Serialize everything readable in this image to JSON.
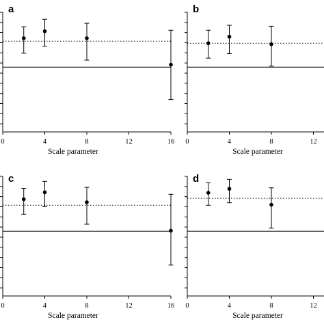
{
  "chart_data": [
    {
      "type": "scatter",
      "panel_label": "a",
      "xlabel": "Scale parameter",
      "xlim": [
        0,
        16
      ],
      "ylim": [
        -1.3,
        1.1
      ],
      "x_ticks": [
        "0",
        "4",
        "8",
        "12",
        "16"
      ],
      "dotted_line_y": 0.52,
      "solid_line_y": 0,
      "grid": false,
      "series": [
        {
          "points": [
            {
              "x": 2,
              "y": 0.58,
              "lower": 0.28,
              "upper": 0.81
            },
            {
              "x": 4,
              "y": 0.72,
              "lower": 0.42,
              "upper": 0.96
            },
            {
              "x": 8,
              "y": 0.58,
              "lower": 0.14,
              "upper": 0.88
            },
            {
              "x": 16,
              "y": 0.05,
              "lower": -0.65,
              "upper": 0.74
            }
          ]
        }
      ]
    },
    {
      "type": "scatter",
      "panel_label": "b",
      "xlabel": "Scale parameter",
      "xlim": [
        0,
        16
      ],
      "ylim": [
        -1.3,
        1.1
      ],
      "x_ticks": [
        "0",
        "4",
        "8",
        "12"
      ],
      "dotted_line_y": 0.48,
      "solid_line_y": 0,
      "grid": false,
      "series": [
        {
          "points": [
            {
              "x": 2,
              "y": 0.48,
              "lower": 0.18,
              "upper": 0.74
            },
            {
              "x": 4,
              "y": 0.61,
              "lower": 0.27,
              "upper": 0.84
            },
            {
              "x": 8,
              "y": 0.46,
              "lower": 0.02,
              "upper": 0.82
            }
          ]
        }
      ]
    },
    {
      "type": "scatter",
      "panel_label": "c",
      "xlabel": "Scale parameter",
      "xlim": [
        0,
        16
      ],
      "ylim": [
        -1.3,
        1.1
      ],
      "x_ticks": [
        "0",
        "4",
        "8",
        "12",
        "16"
      ],
      "dotted_line_y": 0.52,
      "solid_line_y": 0,
      "grid": false,
      "series": [
        {
          "points": [
            {
              "x": 2,
              "y": 0.64,
              "lower": 0.34,
              "upper": 0.86
            },
            {
              "x": 4,
              "y": 0.78,
              "lower": 0.49,
              "upper": 1.0
            },
            {
              "x": 8,
              "y": 0.58,
              "lower": 0.14,
              "upper": 0.88
            },
            {
              "x": 16,
              "y": 0.01,
              "lower": -0.68,
              "upper": 0.74
            }
          ]
        }
      ]
    },
    {
      "type": "scatter",
      "panel_label": "d",
      "xlabel": "Scale parameter",
      "xlim": [
        0,
        16
      ],
      "ylim": [
        -1.3,
        1.1
      ],
      "x_ticks": [
        "0",
        "4",
        "8",
        "12"
      ],
      "dotted_line_y": 0.66,
      "solid_line_y": 0,
      "grid": false,
      "series": [
        {
          "points": [
            {
              "x": 2,
              "y": 0.77,
              "lower": 0.52,
              "upper": 0.97
            },
            {
              "x": 4,
              "y": 0.85,
              "lower": 0.57,
              "upper": 1.04
            },
            {
              "x": 8,
              "y": 0.53,
              "lower": 0.06,
              "upper": 0.87
            }
          ]
        }
      ]
    }
  ]
}
